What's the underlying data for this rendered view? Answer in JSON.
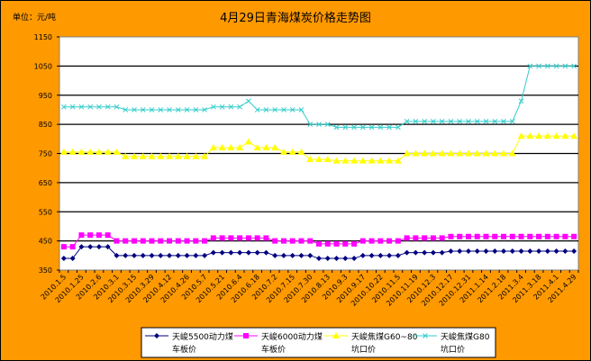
{
  "chart_data": {
    "type": "line",
    "title": "4月29日青海煤炭价格走势图",
    "unit_label": "单位：元/吨",
    "ylim": [
      350,
      1150
    ],
    "yticks": [
      350,
      450,
      550,
      650,
      750,
      850,
      950,
      1050,
      1150
    ],
    "grid": true,
    "legend_position": "bottom",
    "x_tick_labels": [
      "2010.1.5",
      "2010.1.25",
      "2010.2.6",
      "2010.3.1",
      "2010.3.15",
      "2010.3.29",
      "2010.4.12",
      "2010.4.26",
      "2010.5.7",
      "2010.5.21",
      "2010.6.4",
      "2010.6.18",
      "2010.7.2",
      "2010.7.15",
      "2010.7.30",
      "2010.8.13",
      "2010.9.3",
      "2010.9.17",
      "2010.10.22",
      "2010.11.5",
      "2010.11.19",
      "2010.12.3",
      "2010.12.17",
      "2010.12.31",
      "2011.1.14",
      "2011.2.18",
      "2011.3.4",
      "2011.3.18",
      "2011.4.1",
      "2011.4.29"
    ],
    "series": [
      {
        "name": "天峻5500动力煤车板价",
        "color": "#000080",
        "marker": "diamond",
        "values": [
          390,
          390,
          430,
          430,
          430,
          430,
          400,
          400,
          400,
          400,
          400,
          400,
          400,
          400,
          400,
          400,
          400,
          410,
          410,
          410,
          410,
          410,
          410,
          410,
          400,
          400,
          400,
          400,
          400,
          390,
          390,
          390,
          390,
          390,
          400,
          400,
          400,
          400,
          400,
          410,
          410,
          410,
          410,
          410,
          415,
          415,
          415,
          415,
          415,
          415,
          415,
          415,
          415,
          415,
          415,
          415,
          415,
          415,
          415
        ]
      },
      {
        "name": "天峻6000动力煤车板价",
        "color": "#FF00FF",
        "marker": "square",
        "values": [
          430,
          430,
          470,
          470,
          470,
          470,
          450,
          450,
          450,
          450,
          450,
          450,
          450,
          450,
          450,
          450,
          450,
          460,
          460,
          460,
          460,
          460,
          460,
          460,
          450,
          450,
          450,
          450,
          450,
          440,
          440,
          440,
          440,
          440,
          450,
          450,
          450,
          450,
          450,
          460,
          460,
          460,
          460,
          460,
          465,
          465,
          465,
          465,
          465,
          465,
          465,
          465,
          465,
          465,
          465,
          465,
          465,
          465,
          465
        ]
      },
      {
        "name": "天峻焦煤G60~80坑口价",
        "color": "#FFFF00",
        "marker": "triangle",
        "values": [
          755,
          755,
          755,
          755,
          755,
          755,
          755,
          740,
          740,
          740,
          740,
          740,
          740,
          740,
          740,
          740,
          740,
          770,
          770,
          770,
          770,
          790,
          770,
          770,
          770,
          755,
          755,
          755,
          730,
          730,
          730,
          725,
          725,
          725,
          725,
          725,
          725,
          725,
          725,
          750,
          750,
          750,
          750,
          750,
          750,
          750,
          750,
          750,
          750,
          750,
          750,
          750,
          810,
          810,
          810,
          810,
          810,
          810,
          810
        ]
      },
      {
        "name": "天峻焦煤G80坑口价",
        "color": "#33CCCC",
        "marker": "x",
        "values": [
          910,
          910,
          910,
          910,
          910,
          910,
          910,
          900,
          900,
          900,
          900,
          900,
          900,
          900,
          900,
          900,
          900,
          910,
          910,
          910,
          910,
          930,
          900,
          900,
          900,
          900,
          900,
          900,
          850,
          850,
          850,
          840,
          840,
          840,
          840,
          840,
          840,
          840,
          840,
          860,
          860,
          860,
          860,
          860,
          860,
          860,
          860,
          860,
          860,
          860,
          860,
          860,
          930,
          1050,
          1050,
          1050,
          1050,
          1050,
          1050
        ]
      }
    ]
  },
  "legend": [
    {
      "line1": "天峻5500动力煤",
      "line2": "车板价"
    },
    {
      "line1": "天峻6000动力煤",
      "line2": "车板价"
    },
    {
      "line1": "天峻焦煤G60~80",
      "line2": "坑口价"
    },
    {
      "line1": "天峻焦煤G80",
      "line2": "坑口价"
    }
  ]
}
